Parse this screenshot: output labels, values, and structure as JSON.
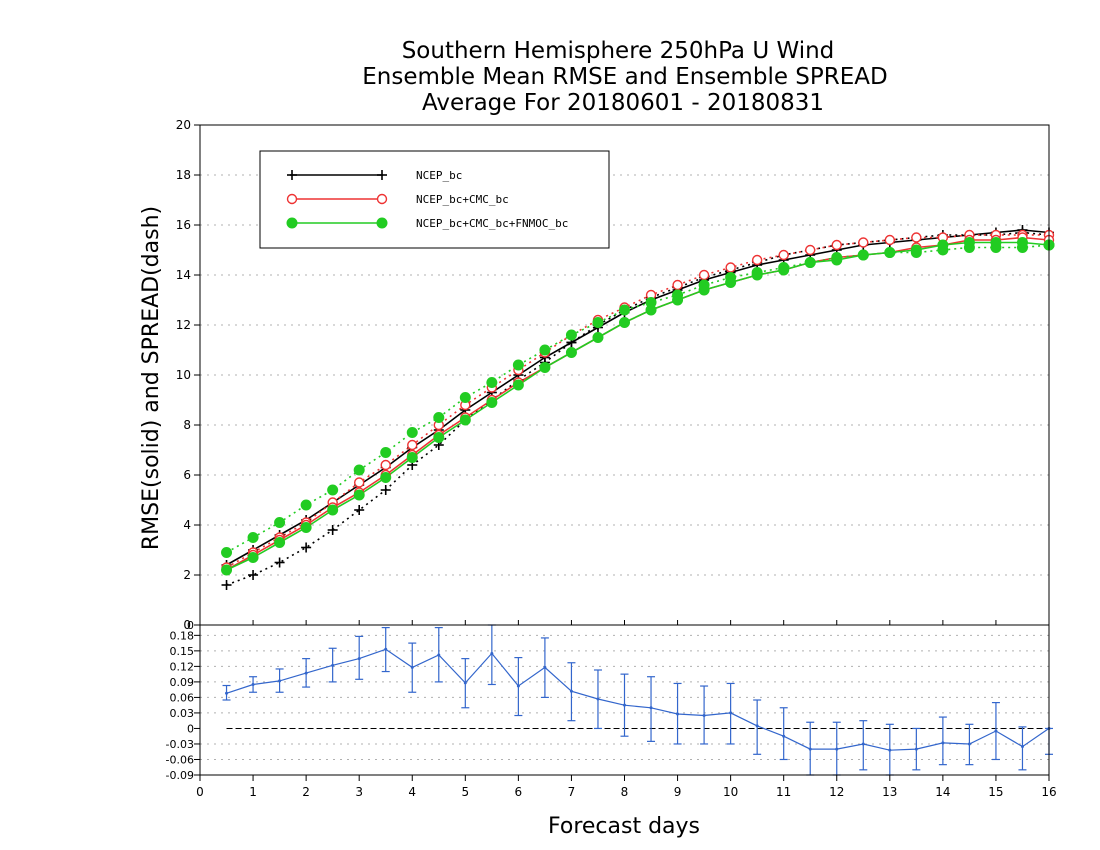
{
  "titles": [
    "Southern Hemisphere 250hPa U Wind",
    "Ensemble Mean RMSE and Ensemble SPREAD",
    "Average For 20180601 - 20180831"
  ],
  "xlabel": "Forecast days",
  "ylabel": "RMSE(solid) and SPREAD(dash)",
  "chart_data": [
    {
      "type": "line",
      "title": "Southern Hemisphere 250hPa U Wind / Ensemble Mean RMSE and Ensemble SPREAD / Average For 20180601 - 20180831",
      "xlabel": "Forecast days",
      "ylabel": "RMSE(solid) and SPREAD(dash)",
      "xlim": [
        0,
        16
      ],
      "ylim": [
        0,
        20
      ],
      "x_ticks": [
        "0",
        "1",
        "2",
        "3",
        "4",
        "5",
        "6",
        "7",
        "8",
        "9",
        "10",
        "11",
        "12",
        "13",
        "14",
        "15",
        "16"
      ],
      "y_ticks": [
        "0",
        "2",
        "4",
        "6",
        "8",
        "10",
        "12",
        "14",
        "16",
        "18",
        "20"
      ],
      "grid": true,
      "legend_position": "top-left",
      "x": [
        0.5,
        1,
        1.5,
        2,
        2.5,
        3,
        3.5,
        4,
        4.5,
        5,
        5.5,
        6,
        6.5,
        7,
        7.5,
        8,
        8.5,
        9,
        9.5,
        10,
        10.5,
        11,
        11.5,
        12,
        12.5,
        13,
        13.5,
        14,
        14.5,
        15,
        15.5,
        16
      ],
      "series": [
        {
          "name": "NCEP_bc",
          "color": "#000000",
          "marker": "plus",
          "rmse": [
            2.4,
            3.0,
            3.6,
            4.2,
            4.9,
            5.6,
            6.3,
            7.1,
            7.8,
            8.6,
            9.3,
            10.0,
            10.7,
            11.3,
            11.9,
            12.5,
            13.0,
            13.4,
            13.8,
            14.1,
            14.4,
            14.6,
            14.8,
            15.0,
            15.2,
            15.3,
            15.4,
            15.5,
            15.6,
            15.7,
            15.8,
            15.7
          ],
          "spread": [
            1.6,
            2.0,
            2.5,
            3.1,
            3.8,
            4.6,
            5.4,
            6.4,
            7.2,
            8.2,
            9.0,
            9.8,
            10.5,
            11.3,
            12.0,
            12.6,
            13.1,
            13.5,
            13.9,
            14.2,
            14.5,
            14.8,
            15.0,
            15.2,
            15.3,
            15.4,
            15.5,
            15.6,
            15.6,
            15.6,
            15.7,
            15.6
          ]
        },
        {
          "name": "NCEP_bc+CMC_bc",
          "color": "#ee3333",
          "marker": "open-circle",
          "rmse": [
            2.2,
            2.8,
            3.4,
            4.0,
            4.7,
            5.3,
            6.0,
            6.8,
            7.6,
            8.3,
            9.0,
            9.7,
            10.3,
            10.9,
            11.5,
            12.1,
            12.6,
            13.0,
            13.4,
            13.7,
            14.0,
            14.2,
            14.5,
            14.7,
            14.8,
            14.9,
            15.1,
            15.2,
            15.4,
            15.4,
            15.5,
            15.4
          ],
          "spread": [
            2.3,
            2.9,
            3.5,
            4.1,
            4.9,
            5.7,
            6.4,
            7.2,
            8.0,
            8.8,
            9.5,
            10.2,
            10.9,
            11.6,
            12.2,
            12.7,
            13.2,
            13.6,
            14.0,
            14.3,
            14.6,
            14.8,
            15.0,
            15.2,
            15.3,
            15.4,
            15.5,
            15.5,
            15.6,
            15.6,
            15.6,
            15.6
          ]
        },
        {
          "name": "NCEP_bc+CMC_bc+FNMOC_bc",
          "color": "#22cc22",
          "marker": "filled-circle",
          "rmse": [
            2.2,
            2.7,
            3.3,
            3.9,
            4.6,
            5.2,
            5.9,
            6.7,
            7.5,
            8.2,
            8.9,
            9.6,
            10.3,
            10.9,
            11.5,
            12.1,
            12.6,
            13.0,
            13.4,
            13.7,
            14.0,
            14.2,
            14.5,
            14.6,
            14.8,
            14.9,
            15.0,
            15.2,
            15.3,
            15.3,
            15.3,
            15.2
          ],
          "spread": [
            2.9,
            3.5,
            4.1,
            4.8,
            5.4,
            6.2,
            6.9,
            7.7,
            8.3,
            9.1,
            9.7,
            10.4,
            11.0,
            11.6,
            12.1,
            12.6,
            12.9,
            13.2,
            13.6,
            13.9,
            14.1,
            14.3,
            14.5,
            14.7,
            14.8,
            14.9,
            14.9,
            15.0,
            15.1,
            15.1,
            15.1,
            15.2
          ]
        }
      ]
    },
    {
      "type": "line",
      "title": "",
      "xlim": [
        0,
        16
      ],
      "ylim": [
        -0.09,
        0.2
      ],
      "y_ticks": [
        "0.18",
        "0.15",
        "0.12",
        "0.09",
        "0.06",
        "0.03",
        "0",
        "-0.03",
        "-0.06",
        "-0.09"
      ],
      "y_tick_values": [
        0.18,
        0.15,
        0.12,
        0.09,
        0.06,
        0.03,
        0,
        -0.03,
        -0.06,
        -0.09
      ],
      "top_label": "0",
      "color": "#3366cc",
      "x": [
        0.5,
        1,
        1.5,
        2,
        2.5,
        3,
        3.5,
        4,
        4.5,
        5,
        5.5,
        6,
        6.5,
        7,
        7.5,
        8,
        8.5,
        9,
        9.5,
        10,
        10.5,
        11,
        11.5,
        12,
        12.5,
        13,
        13.5,
        14,
        14.5,
        15,
        15.5,
        16
      ],
      "values": [
        0.068,
        0.085,
        0.092,
        0.107,
        0.122,
        0.135,
        0.153,
        0.118,
        0.142,
        0.088,
        0.145,
        0.082,
        0.118,
        0.072,
        0.057,
        0.045,
        0.04,
        0.028,
        0.025,
        0.03,
        0.005,
        -0.015,
        -0.04,
        -0.04,
        -0.03,
        -0.042,
        -0.04,
        -0.028,
        -0.03,
        -0.005,
        -0.035,
        0.0
      ],
      "error_low": [
        0.055,
        0.07,
        0.07,
        0.08,
        0.09,
        0.095,
        0.11,
        0.07,
        0.09,
        0.04,
        0.085,
        0.025,
        0.06,
        0.015,
        0.0,
        -0.015,
        -0.025,
        -0.03,
        -0.03,
        -0.03,
        -0.05,
        -0.06,
        -0.09,
        -0.09,
        -0.08,
        -0.09,
        -0.08,
        -0.07,
        -0.07,
        -0.06,
        -0.08,
        -0.05
      ],
      "error_high": [
        0.083,
        0.1,
        0.115,
        0.135,
        0.155,
        0.178,
        0.195,
        0.165,
        0.195,
        0.135,
        0.2,
        0.137,
        0.175,
        0.127,
        0.113,
        0.105,
        0.1,
        0.087,
        0.082,
        0.087,
        0.055,
        0.04,
        0.012,
        0.012,
        0.015,
        0.008,
        0.0,
        0.022,
        0.008,
        0.05,
        0.003,
        0.0
      ],
      "zero_line": true
    }
  ]
}
